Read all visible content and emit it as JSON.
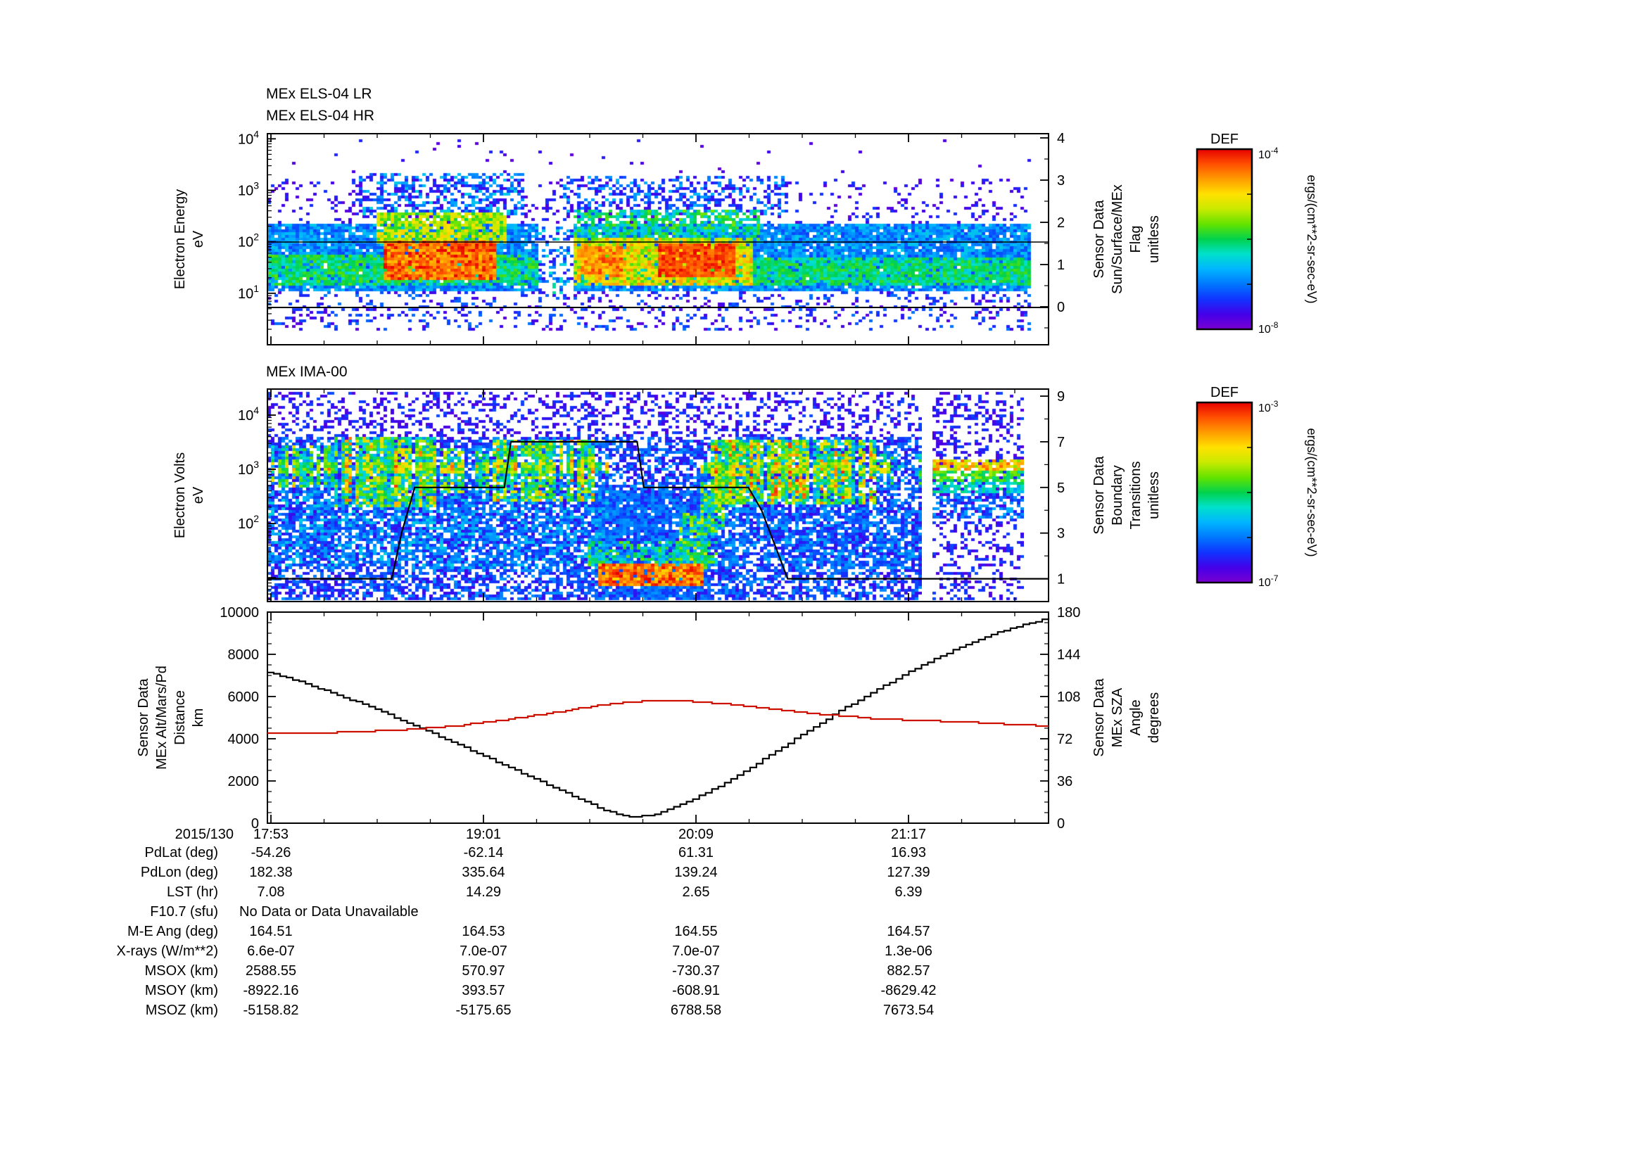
{
  "meta": {
    "date_label": "2015/130"
  },
  "colormap": [
    "#7a00d0",
    "#4400e8",
    "#1133ff",
    "#0077ff",
    "#00b4ff",
    "#00e0cc",
    "#00d24d",
    "#63e300",
    "#c8ea00",
    "#ffe100",
    "#ff9d00",
    "#ff5000",
    "#e80000"
  ],
  "els": {
    "title_lr": "MEx ELS-04 LR",
    "title_hr": "MEx ELS-04 HR",
    "ylabel_lines": [
      "Electron Energy",
      "eV"
    ],
    "ytick_labels": [
      "10^4",
      "10^3",
      "10^2",
      "10^1"
    ],
    "right_label_lines": [
      "Sensor Data",
      "Sun/Surface/MEx",
      "Flag",
      "unitless"
    ],
    "right_tick_labels": [
      "4",
      "3",
      "2",
      "1",
      "0"
    ],
    "colorbar": {
      "title": "DEF",
      "top_label": "10^-4",
      "bottom_label": "10^-8",
      "unit": "ergs/(cm**2-sr-sec-eV)"
    }
  },
  "ima": {
    "title": "MEx IMA-00",
    "ylabel_lines": [
      "Electron Volts",
      "eV"
    ],
    "ytick_labels": [
      "10^4",
      "10^3",
      "10^2"
    ],
    "right_label_lines": [
      "Sensor Data",
      "Boundary",
      "Transitions",
      "unitless"
    ],
    "right_tick_labels": [
      "9",
      "7",
      "5",
      "3",
      "1"
    ],
    "colorbar": {
      "title": "DEF",
      "top_label": "10^-3",
      "bottom_label": "10^-7",
      "unit": "ergs/(cm**2-sr-sec-eV)"
    }
  },
  "bottom": {
    "left_label_lines": [
      "Sensor Data",
      "MEx Alt/Mars/Pd",
      "Distance",
      "km"
    ],
    "left_tick_labels": [
      "10000",
      "8000",
      "6000",
      "4000",
      "2000",
      "0"
    ],
    "right_label_lines": [
      "Sensor Data",
      "MEx SZA",
      "Angle",
      "degrees"
    ],
    "right_tick_labels": [
      "180",
      "144",
      "108",
      "72",
      "36",
      "0"
    ],
    "xtick_labels": [
      "17:53",
      "19:01",
      "20:09",
      "21:17"
    ],
    "sza_color": "#cc1100"
  },
  "table": {
    "rows": [
      {
        "label": "PdLat (deg)",
        "values": [
          "-54.26",
          "-62.14",
          "61.31",
          "16.93"
        ]
      },
      {
        "label": "PdLon (deg)",
        "values": [
          "182.38",
          "335.64",
          "139.24",
          "127.39"
        ]
      },
      {
        "label": "LST (hr)",
        "values": [
          "7.08",
          "14.29",
          "2.65",
          "6.39"
        ]
      },
      {
        "label": "F10.7 (sfu)",
        "values": [],
        "note": "No Data or Data Unavailable"
      },
      {
        "label": "M-E Ang (deg)",
        "values": [
          "164.51",
          "164.53",
          "164.55",
          "164.57"
        ]
      },
      {
        "label": "X-rays (W/m**2)",
        "values": [
          "6.6e-07",
          "7.0e-07",
          "7.0e-07",
          "1.3e-06"
        ]
      },
      {
        "label": "MSOX (km)",
        "values": [
          "2588.55",
          "570.97",
          "-730.37",
          "882.57"
        ]
      },
      {
        "label": "MSOY (km)",
        "values": [
          "-8922.16",
          "393.57",
          "-608.91",
          "-8629.42"
        ]
      },
      {
        "label": "MSOZ (km)",
        "values": [
          "-5158.82",
          "-5175.65",
          "6788.58",
          "7673.54"
        ]
      }
    ]
  },
  "chart_data": [
    {
      "type": "heatmap",
      "title": "MEx ELS-04 LR / MEx ELS-04 HR electron energy spectrogram",
      "date": "2015/130",
      "x_ticks": [
        "17:53",
        "19:01",
        "20:09",
        "21:17"
      ],
      "y_axis": {
        "label": "Electron Energy eV",
        "scale": "log",
        "range_log10": [
          0,
          4.1
        ]
      },
      "right_axis": {
        "label": "Sensor Data Sun/Surface/MEx Flag unitless",
        "ticks": [
          4,
          3,
          2,
          1,
          0
        ]
      },
      "colorbar": {
        "title": "DEF",
        "unit": "ergs/(cm**2-sr-sec-eV)",
        "max": "10^-4",
        "min": "10^-8"
      },
      "overlays": [
        {
          "type": "hline_log10_energy",
          "value": 2.0
        },
        {
          "type": "hline_flag",
          "value": 0
        }
      ],
      "features": [
        {
          "x0": 0.0,
          "x1": 0.345,
          "e0": 1.05,
          "e1": 2.35,
          "d": 0.93,
          "i0": 0.18,
          "i1": 0.38
        },
        {
          "x0": 0.39,
          "x1": 0.978,
          "e0": 1.05,
          "e1": 2.35,
          "d": 0.93,
          "i0": 0.18,
          "i1": 0.38
        },
        {
          "x0": 0.0,
          "x1": 0.345,
          "e0": 1.15,
          "e1": 1.75,
          "d": 0.8,
          "i0": 0.4,
          "i1": 0.58
        },
        {
          "x0": 0.39,
          "x1": 0.978,
          "e0": 1.15,
          "e1": 1.7,
          "d": 0.75,
          "i0": 0.4,
          "i1": 0.56
        },
        {
          "x0": 0.0,
          "x1": 0.978,
          "e0": 2.35,
          "e1": 3.25,
          "d": 0.13,
          "i0": 0.04,
          "i1": 0.18
        },
        {
          "x0": 0.0,
          "x1": 0.978,
          "e0": 0.25,
          "e1": 1.05,
          "d": 0.2,
          "i0": 0.04,
          "i1": 0.25
        },
        {
          "x0": 0.15,
          "x1": 0.295,
          "e0": 1.25,
          "e1": 2.0,
          "d": 0.97,
          "i0": 0.78,
          "i1": 1.0
        },
        {
          "x0": 0.14,
          "x1": 0.305,
          "e0": 1.95,
          "e1": 2.55,
          "d": 0.88,
          "i0": 0.5,
          "i1": 0.78
        },
        {
          "x0": 0.115,
          "x1": 0.33,
          "e0": 2.5,
          "e1": 3.35,
          "d": 0.45,
          "i0": 0.08,
          "i1": 0.4
        },
        {
          "x0": 0.345,
          "x1": 0.39,
          "e0": 1.0,
          "e1": 2.3,
          "d": 0.35,
          "i0": 0.1,
          "i1": 0.45
        },
        {
          "x0": 0.39,
          "x1": 0.62,
          "e0": 1.15,
          "e1": 2.1,
          "d": 0.9,
          "i0": 0.55,
          "i1": 0.85
        },
        {
          "x0": 0.4,
          "x1": 0.455,
          "e0": 1.3,
          "e1": 1.9,
          "d": 0.9,
          "i0": 0.75,
          "i1": 0.95
        },
        {
          "x0": 0.5,
          "x1": 0.6,
          "e0": 1.3,
          "e1": 1.95,
          "d": 0.95,
          "i0": 0.85,
          "i1": 1.0
        },
        {
          "x0": 0.39,
          "x1": 0.63,
          "e0": 2.0,
          "e1": 2.6,
          "d": 0.6,
          "i0": 0.35,
          "i1": 0.6
        },
        {
          "x0": 0.38,
          "x1": 0.66,
          "e0": 2.5,
          "e1": 3.3,
          "d": 0.35,
          "i0": 0.08,
          "i1": 0.35
        },
        {
          "x0": 0.62,
          "x1": 0.978,
          "e0": 1.2,
          "e1": 1.6,
          "d": 0.6,
          "i0": 0.35,
          "i1": 0.55
        },
        {
          "x0": 0.0,
          "x1": 0.978,
          "e0": 3.3,
          "e1": 4.0,
          "d": 0.015,
          "i0": 0.04,
          "i1": 0.15
        }
      ]
    },
    {
      "type": "heatmap",
      "title": "MEx IMA-00 ion spectrogram",
      "date": "2015/130",
      "x_ticks": [
        "17:53",
        "19:01",
        "20:09",
        "21:17"
      ],
      "y_axis": {
        "label": "Electron Volts eV",
        "scale": "log",
        "range_log10": [
          0.56,
          4.48
        ]
      },
      "right_axis": {
        "label": "Sensor Data Boundary Transitions unitless",
        "ticks": [
          9,
          7,
          5,
          3,
          1
        ]
      },
      "colorbar": {
        "title": "DEF",
        "unit": "ergs/(cm**2-sr-sec-eV)",
        "max": "10^-3",
        "min": "10^-7"
      },
      "boundary_steps": [
        [
          0,
          1
        ],
        [
          0.19,
          1
        ],
        [
          0.205,
          3
        ],
        [
          0.225,
          5
        ],
        [
          0.362,
          5
        ],
        [
          0.372,
          7
        ],
        [
          0.565,
          7
        ],
        [
          0.575,
          5
        ],
        [
          0.735,
          5
        ],
        [
          0.755,
          4
        ],
        [
          0.775,
          2.5
        ],
        [
          0.795,
          1
        ],
        [
          1,
          1
        ]
      ],
      "features": [
        {
          "x0": 0,
          "x1": 1,
          "e0": 0.6,
          "e1": 3.6,
          "d": 0.62,
          "i0": 0.08,
          "i1": 0.3
        },
        {
          "x0": 0,
          "x1": 1,
          "e0": 3.6,
          "e1": 4.45,
          "d": 0.3,
          "i0": 0.05,
          "i1": 0.2
        },
        {
          "x0": 0,
          "x1": 0.1,
          "e0": 2.65,
          "e1": 3.45,
          "d": 0.8,
          "i0": 0.3,
          "i1": 0.85,
          "s": true
        },
        {
          "x0": 0.1,
          "x1": 0.265,
          "e0": 2.3,
          "e1": 3.6,
          "d": 0.85,
          "i0": 0.4,
          "i1": 1.0,
          "s": true
        },
        {
          "x0": 0.265,
          "x1": 0.34,
          "e0": 2.55,
          "e1": 3.4,
          "d": 0.75,
          "i0": 0.3,
          "i1": 0.8,
          "s": true
        },
        {
          "x0": 0.34,
          "x1": 0.5,
          "e0": 2.4,
          "e1": 3.55,
          "d": 0.8,
          "i0": 0.4,
          "i1": 0.95,
          "s": true
        },
        {
          "x0": 0,
          "x1": 0.52,
          "e0": 2.95,
          "e1": 3.15,
          "d": 0.85,
          "i0": 0.6,
          "i1": 0.95,
          "s": true
        },
        {
          "x0": 0,
          "x1": 0.52,
          "e0": 1.2,
          "e1": 2.6,
          "d": 0.5,
          "i0": 0.1,
          "i1": 0.4
        },
        {
          "x0": 0.5,
          "x1": 0.68,
          "e0": 0.6,
          "e1": 2.6,
          "d": 0.8,
          "i0": 0.12,
          "i1": 0.3
        },
        {
          "x0": 0.505,
          "x1": 0.665,
          "e0": 0.85,
          "e1": 1.3,
          "d": 0.95,
          "i0": 0.75,
          "i1": 1.0
        },
        {
          "x0": 0.49,
          "x1": 0.69,
          "e0": 1.25,
          "e1": 1.7,
          "d": 0.6,
          "i0": 0.3,
          "i1": 0.6
        },
        {
          "x0": 0.63,
          "x1": 0.67,
          "e0": 1.2,
          "e1": 2.2,
          "d": 0.7,
          "i0": 0.3,
          "i1": 0.7
        },
        {
          "x0": 0.66,
          "x1": 0.7,
          "e0": 1.8,
          "e1": 2.8,
          "d": 0.7,
          "i0": 0.3,
          "i1": 0.7
        },
        {
          "x0": 0.69,
          "x1": 0.72,
          "e0": 2.3,
          "e1": 3.2,
          "d": 0.7,
          "i0": 0.3,
          "i1": 0.7
        },
        {
          "x0": 0.68,
          "x1": 0.93,
          "e0": 2.35,
          "e1": 3.55,
          "d": 0.85,
          "i0": 0.4,
          "i1": 1.0,
          "s": true
        },
        {
          "x0": 0.66,
          "x1": 0.95,
          "e0": 2.95,
          "e1": 3.15,
          "d": 0.8,
          "i0": 0.55,
          "i1": 0.9,
          "s": true
        },
        {
          "x0": 0.68,
          "x1": 1.0,
          "e0": 1.2,
          "e1": 2.4,
          "d": 0.45,
          "i0": 0.1,
          "i1": 0.35
        },
        {
          "x0": 0.93,
          "x1": 1.0,
          "e0": 2.7,
          "e1": 3.3,
          "d": 0.4,
          "i0": 0.2,
          "i1": 0.6,
          "s": true
        }
      ],
      "strip_features": [
        {
          "x0": 0,
          "x1": 1,
          "e0": 0.6,
          "e1": 4.45,
          "d": 0.3,
          "i0": 0.05,
          "i1": 0.2
        },
        {
          "x0": 0,
          "x1": 1,
          "e0": 3.0,
          "e1": 3.2,
          "d": 0.8,
          "i0": 0.6,
          "i1": 0.9
        },
        {
          "x0": 0,
          "x1": 1,
          "e0": 2.8,
          "e1": 3.0,
          "d": 0.8,
          "i0": 0.45,
          "i1": 0.65
        },
        {
          "x0": 0,
          "x1": 1,
          "e0": 2.55,
          "e1": 2.8,
          "d": 0.7,
          "i0": 0.3,
          "i1": 0.5
        },
        {
          "x0": 0,
          "x1": 1,
          "e0": 2.1,
          "e1": 2.55,
          "d": 0.5,
          "i0": 0.15,
          "i1": 0.35
        }
      ]
    },
    {
      "type": "line",
      "title": "MEx altitude and solar zenith angle",
      "date": "2015/130",
      "x_ticks": [
        "17:53",
        "19:01",
        "20:09",
        "21:17"
      ],
      "series": [
        {
          "name": "Sensor Data MEx Alt/Mars/Pd Distance km",
          "axis": "left",
          "range": [
            0,
            10000
          ],
          "color": "#000000",
          "points": [
            [
              0,
              7150
            ],
            [
              0.04,
              6700
            ],
            [
              0.08,
              6200
            ],
            [
              0.12,
              5650
            ],
            [
              0.16,
              5050
            ],
            [
              0.2,
              4420
            ],
            [
              0.24,
              3780
            ],
            [
              0.28,
              3120
            ],
            [
              0.32,
              2450
            ],
            [
              0.36,
              1780
            ],
            [
              0.4,
              1120
            ],
            [
              0.43,
              620
            ],
            [
              0.45,
              380
            ],
            [
              0.47,
              300
            ],
            [
              0.49,
              380
            ],
            [
              0.51,
              600
            ],
            [
              0.54,
              1050
            ],
            [
              0.58,
              1800
            ],
            [
              0.62,
              2700
            ],
            [
              0.66,
              3650
            ],
            [
              0.7,
              4600
            ],
            [
              0.74,
              5500
            ],
            [
              0.78,
              6350
            ],
            [
              0.82,
              7150
            ],
            [
              0.86,
              7900
            ],
            [
              0.9,
              8550
            ],
            [
              0.94,
              9100
            ],
            [
              0.97,
              9450
            ],
            [
              1,
              9700
            ]
          ]
        },
        {
          "name": "Sensor Data MEx SZA Angle degrees",
          "axis": "right",
          "range": [
            0,
            180
          ],
          "color": "#cc1100",
          "points": [
            [
              0,
              77
            ],
            [
              0.06,
              77
            ],
            [
              0.12,
              78
            ],
            [
              0.18,
              80
            ],
            [
              0.24,
              83
            ],
            [
              0.3,
              88
            ],
            [
              0.36,
              94
            ],
            [
              0.42,
              100
            ],
            [
              0.46,
              103
            ],
            [
              0.5,
              105
            ],
            [
              0.54,
              104
            ],
            [
              0.58,
              102
            ],
            [
              0.62,
              99
            ],
            [
              0.66,
              96
            ],
            [
              0.7,
              93
            ],
            [
              0.74,
              91
            ],
            [
              0.78,
              89
            ],
            [
              0.82,
              88
            ],
            [
              0.86,
              87
            ],
            [
              0.9,
              86
            ],
            [
              0.95,
              84
            ],
            [
              1,
              83
            ]
          ]
        }
      ]
    }
  ]
}
